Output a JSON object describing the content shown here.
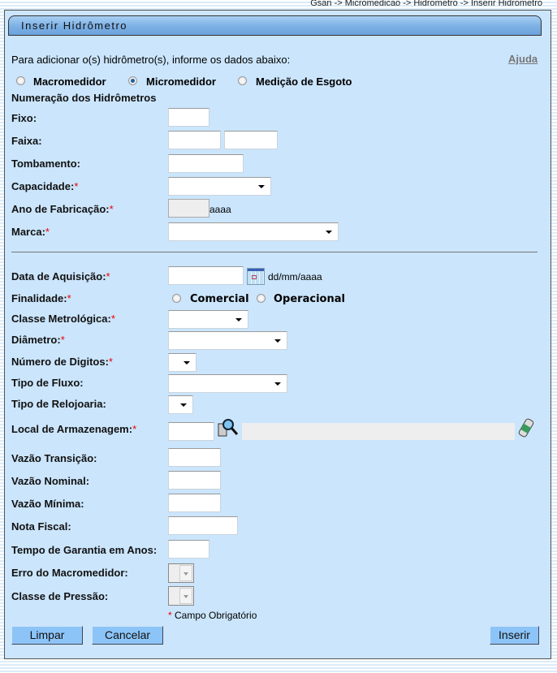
{
  "breadcrumb": "Gsan -> Micromedicao -> Hidrometro -> Inserir Hidrometro",
  "title": "Inserir Hidrômetro",
  "intro": "Para adicionar o(s) hidrômetro(s), informe os dados abaixo:",
  "help": "Ajuda",
  "types": [
    {
      "label": "Macromedidor",
      "selected": false
    },
    {
      "label": "Micromedidor",
      "selected": true
    },
    {
      "label": "Medição de Esgoto",
      "selected": false
    }
  ],
  "section": "Numeração dos Hidrômetros",
  "labels": {
    "fixo": "Fixo:",
    "faixa": "Faixa:",
    "tombamento": "Tombamento:",
    "capacidade": "Capacidade:",
    "ano": "Ano de Fabricação:",
    "marca": "Marca:",
    "data": "Data de Aquisição:",
    "finalidade": "Finalidade:",
    "classe": "Classe Metrológica:",
    "diametro": "Diâmetro:",
    "digitos": "Número de Digitos:",
    "fluxo": "Tipo de Fluxo:",
    "relojoaria": "Tipo de Relojoaria:",
    "local": "Local de Armazenagem:",
    "vt": "Vazão Transição:",
    "vn": "Vazão Nominal:",
    "vm": "Vazão Mínima:",
    "nota": "Nota Fiscal:",
    "garantia": "Tempo de Garantia em Anos:",
    "erro": "Erro do Macromedidor:",
    "pressao": "Classe de Pressão:"
  },
  "required_mark": "*",
  "ano_hint": "aaaa",
  "date_hint": "dd/mm/aaaa",
  "finalidade_options": [
    {
      "label": "Comercial",
      "selected": false
    },
    {
      "label": "Operacional",
      "selected": false
    }
  ],
  "required_note": "Campo Obrigatório",
  "buttons": {
    "limpar": "Limpar",
    "cancelar": "Cancelar",
    "inserir": "Inserir"
  }
}
